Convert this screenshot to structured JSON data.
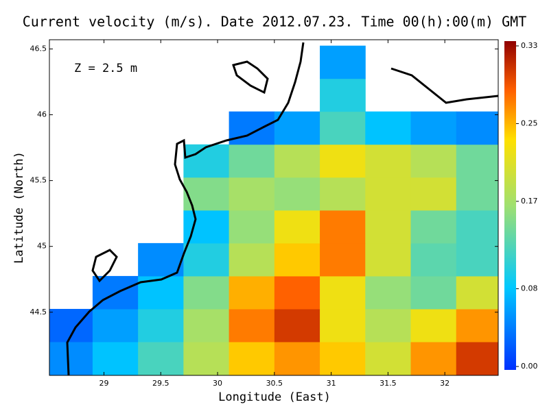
{
  "chart_data": {
    "type": "heatmap",
    "title": "Current velocity (m/s). Date 2012.07.23. Time 00(h):00(m) GMT",
    "annotation": "Z = 2.5 m",
    "x_label": "Longitude (East)",
    "y_label": "Latitude (North)",
    "xlim": [
      28.52,
      32.47
    ],
    "ylim": [
      44.02,
      46.57
    ],
    "xticks": [
      29,
      29.5,
      30,
      30.5,
      31,
      31.5,
      32
    ],
    "yticks": [
      44.5,
      45,
      45.5,
      46,
      46.5
    ],
    "colorbar_lim": [
      0,
      0.33
    ],
    "colorbar_ticks": [
      {
        "value": 0,
        "label": "0.00"
      },
      0.08,
      0.17,
      0.25,
      0.33
    ],
    "lon": [
      28.7,
      29.1,
      29.5,
      29.9,
      30.3,
      30.7,
      31.1,
      31.5,
      31.9,
      32.3
    ],
    "lat": [
      44.15,
      44.4,
      44.65,
      44.9,
      45.15,
      45.4,
      45.65,
      45.9,
      46.15,
      46.4
    ],
    "values": [
      [
        0.05,
        0.08,
        0.12,
        0.18,
        0.24,
        0.26,
        0.24,
        0.2,
        0.26,
        0.3
      ],
      [
        0.03,
        0.06,
        0.1,
        0.17,
        0.27,
        0.3,
        0.22,
        0.18,
        0.22,
        0.26
      ],
      [
        null,
        0.04,
        0.08,
        0.15,
        0.25,
        0.28,
        0.22,
        0.16,
        0.14,
        0.2
      ],
      [
        null,
        null,
        0.05,
        0.1,
        0.18,
        0.24,
        0.27,
        0.2,
        0.13,
        0.12
      ],
      [
        null,
        null,
        null,
        0.08,
        0.16,
        0.22,
        0.27,
        0.2,
        0.14,
        0.12
      ],
      [
        null,
        null,
        null,
        0.15,
        0.17,
        0.16,
        0.18,
        0.2,
        0.2,
        0.14
      ],
      [
        null,
        null,
        null,
        0.1,
        0.14,
        0.18,
        0.22,
        0.2,
        0.18,
        0.14
      ],
      [
        null,
        null,
        null,
        null,
        0.04,
        0.06,
        0.12,
        0.08,
        0.06,
        0.05
      ],
      [
        null,
        null,
        null,
        null,
        null,
        null,
        0.1,
        null,
        null,
        null
      ],
      [
        null,
        null,
        null,
        null,
        null,
        null,
        0.06,
        null,
        null,
        null
      ]
    ]
  }
}
